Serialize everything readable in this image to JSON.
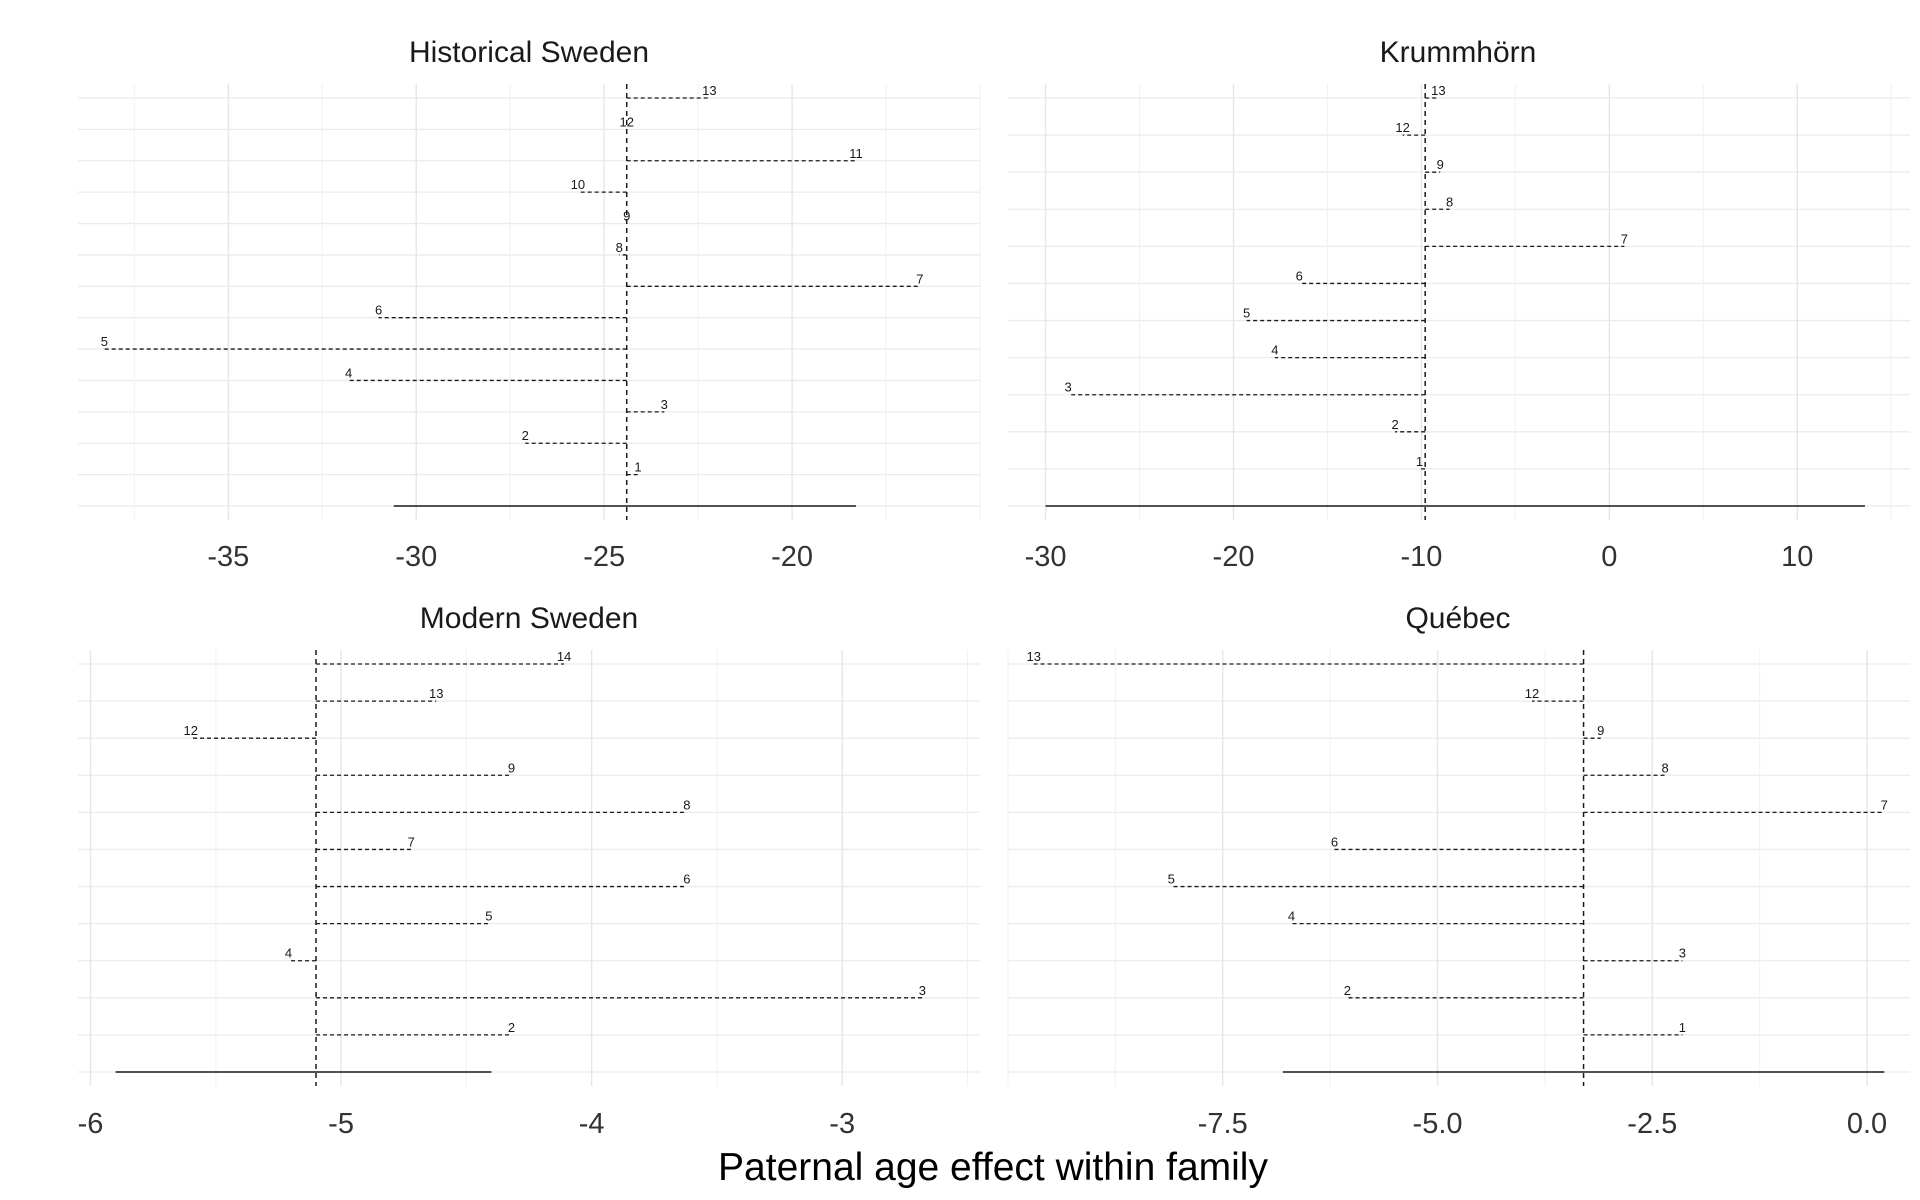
{
  "figure": {
    "xlabel": "Paternal age effect within family"
  },
  "chart_data": [
    {
      "type": "line",
      "title": "Historical Sweden",
      "xlabel": "",
      "ylabel": "",
      "xlim": [
        -39,
        -15
      ],
      "xticks": [
        -35,
        -30,
        -25,
        -20
      ],
      "xtick_labels": [
        "-35",
        "-30",
        "-25",
        "-20"
      ],
      "grid": true,
      "legend": "none",
      "reference": -24.4,
      "interval": [
        -30.6,
        -18.3
      ],
      "points": [
        {
          "label": "1",
          "x": -24.1
        },
        {
          "label": "2",
          "x": -27.1
        },
        {
          "label": "3",
          "x": -23.4
        },
        {
          "label": "4",
          "x": -31.8
        },
        {
          "label": "5",
          "x": -38.3
        },
        {
          "label": "6",
          "x": -31.0
        },
        {
          "label": "7",
          "x": -16.6
        },
        {
          "label": "8",
          "x": -24.6
        },
        {
          "label": "9",
          "x": -24.4
        },
        {
          "label": "10",
          "x": -25.7
        },
        {
          "label": "11",
          "x": -18.3
        },
        {
          "label": "12",
          "x": -24.4
        },
        {
          "label": "13",
          "x": -22.2
        }
      ]
    },
    {
      "type": "line",
      "title": "Krummhörn",
      "xlabel": "",
      "ylabel": "",
      "xlim": [
        -32,
        16
      ],
      "xticks": [
        -30,
        -20,
        -10,
        0,
        10
      ],
      "xtick_labels": [
        "-30",
        "-20",
        "-10",
        "0",
        "10"
      ],
      "grid": true,
      "legend": "none",
      "reference": -9.8,
      "interval": [
        -30.0,
        13.6
      ],
      "points": [
        {
          "label": "1",
          "x": -10.1
        },
        {
          "label": "2",
          "x": -11.4
        },
        {
          "label": "3",
          "x": -28.8
        },
        {
          "label": "4",
          "x": -17.8
        },
        {
          "label": "5",
          "x": -19.3
        },
        {
          "label": "6",
          "x": -16.5
        },
        {
          "label": "7",
          "x": 0.8
        },
        {
          "label": "8",
          "x": -8.5
        },
        {
          "label": "9",
          "x": -9.0
        },
        {
          "label": "12",
          "x": -11.0
        },
        {
          "label": "13",
          "x": -9.1
        }
      ]
    },
    {
      "type": "line",
      "title": "Modern Sweden",
      "xlabel": "",
      "ylabel": "",
      "xlim": [
        -6.05,
        -2.45
      ],
      "xticks": [
        -6,
        -5,
        -4,
        -3
      ],
      "xtick_labels": [
        "-6",
        "-5",
        "-4",
        "-3"
      ],
      "grid": true,
      "legend": "none",
      "reference": -5.1,
      "interval": [
        -5.9,
        -4.4
      ],
      "points": [
        {
          "label": "2",
          "x": -4.32
        },
        {
          "label": "3",
          "x": -2.68
        },
        {
          "label": "4",
          "x": -5.21
        },
        {
          "label": "5",
          "x": -4.41
        },
        {
          "label": "6",
          "x": -3.62
        },
        {
          "label": "7",
          "x": -4.72
        },
        {
          "label": "8",
          "x": -3.62
        },
        {
          "label": "9",
          "x": -4.32
        },
        {
          "label": "12",
          "x": -5.6
        },
        {
          "label": "13",
          "x": -4.62
        },
        {
          "label": "14",
          "x": -4.11
        }
      ]
    },
    {
      "type": "line",
      "title": "Québec",
      "xlabel": "",
      "ylabel": "",
      "xlim": [
        -10.0,
        0.5
      ],
      "xticks": [
        -7.5,
        -5.0,
        -2.5,
        0.0
      ],
      "xtick_labels": [
        "-7.5",
        "-5.0",
        "-2.5",
        "0.0"
      ],
      "grid": true,
      "legend": "none",
      "reference": -3.3,
      "interval": [
        -6.8,
        0.2
      ],
      "points": [
        {
          "label": "1",
          "x": -2.15
        },
        {
          "label": "2",
          "x": -6.05
        },
        {
          "label": "3",
          "x": -2.15
        },
        {
          "label": "4",
          "x": -6.7
        },
        {
          "label": "5",
          "x": -8.1
        },
        {
          "label": "6",
          "x": -6.2
        },
        {
          "label": "7",
          "x": 0.2
        },
        {
          "label": "8",
          "x": -2.35
        },
        {
          "label": "9",
          "x": -3.1
        },
        {
          "label": "12",
          "x": -3.9
        },
        {
          "label": "13",
          "x": -9.7
        }
      ]
    }
  ]
}
